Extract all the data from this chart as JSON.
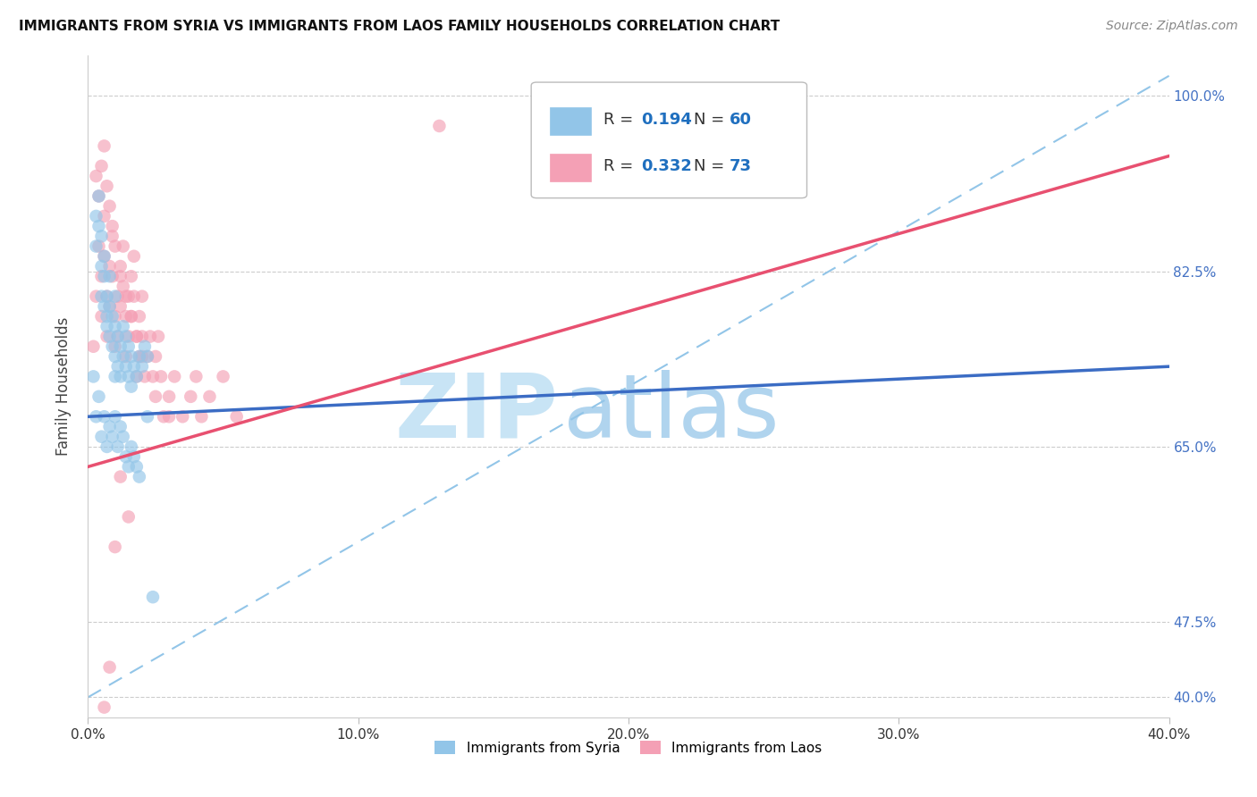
{
  "title": "IMMIGRANTS FROM SYRIA VS IMMIGRANTS FROM LAOS FAMILY HOUSEHOLDS CORRELATION CHART",
  "source": "Source: ZipAtlas.com",
  "ylabel": "Family Households",
  "ytick_values": [
    1.0,
    0.825,
    0.65,
    0.475,
    0.4
  ],
  "ytick_labels": [
    "100.0%",
    "82.5%",
    "65.0%",
    "47.5%",
    "40.0%"
  ],
  "xtick_values": [
    0.0,
    0.1,
    0.2,
    0.3,
    0.4
  ],
  "xtick_labels": [
    "0.0%",
    "10.0%",
    "20.0%",
    "30.0%",
    "40.0%"
  ],
  "xlim": [
    0.0,
    0.4
  ],
  "ylim": [
    0.38,
    1.04
  ],
  "legend_r_syria": "R = 0.194",
  "legend_n_syria": "N = 60",
  "legend_r_laos": "R = 0.332",
  "legend_n_laos": "N = 73",
  "legend_label_syria": "Immigrants from Syria",
  "legend_label_laos": "Immigrants from Laos",
  "color_syria": "#92C5E8",
  "color_laos": "#F4A0B5",
  "color_syria_line": "#3B6CC4",
  "color_laos_line": "#E85070",
  "color_dashed": "#92C5E8",
  "watermark_zip_color": "#C8E4F5",
  "watermark_atlas_color": "#B0D4EE",
  "syria_x": [
    0.002,
    0.003,
    0.003,
    0.004,
    0.004,
    0.005,
    0.005,
    0.005,
    0.006,
    0.006,
    0.006,
    0.007,
    0.007,
    0.007,
    0.008,
    0.008,
    0.008,
    0.009,
    0.009,
    0.01,
    0.01,
    0.01,
    0.011,
    0.011,
    0.012,
    0.012,
    0.013,
    0.013,
    0.014,
    0.014,
    0.015,
    0.015,
    0.016,
    0.016,
    0.017,
    0.018,
    0.019,
    0.02,
    0.021,
    0.022,
    0.003,
    0.004,
    0.005,
    0.006,
    0.007,
    0.008,
    0.009,
    0.01,
    0.011,
    0.012,
    0.013,
    0.014,
    0.015,
    0.016,
    0.017,
    0.018,
    0.019,
    0.022,
    0.024,
    0.01
  ],
  "syria_y": [
    0.72,
    0.88,
    0.85,
    0.9,
    0.87,
    0.86,
    0.83,
    0.8,
    0.84,
    0.82,
    0.79,
    0.77,
    0.78,
    0.8,
    0.76,
    0.79,
    0.82,
    0.75,
    0.78,
    0.74,
    0.77,
    0.8,
    0.73,
    0.76,
    0.72,
    0.75,
    0.74,
    0.77,
    0.73,
    0.76,
    0.72,
    0.75,
    0.74,
    0.71,
    0.73,
    0.72,
    0.74,
    0.73,
    0.75,
    0.74,
    0.68,
    0.7,
    0.66,
    0.68,
    0.65,
    0.67,
    0.66,
    0.68,
    0.65,
    0.67,
    0.66,
    0.64,
    0.63,
    0.65,
    0.64,
    0.63,
    0.62,
    0.68,
    0.5,
    0.72
  ],
  "laos_x": [
    0.002,
    0.003,
    0.004,
    0.005,
    0.005,
    0.006,
    0.006,
    0.007,
    0.007,
    0.008,
    0.008,
    0.009,
    0.009,
    0.01,
    0.01,
    0.011,
    0.011,
    0.012,
    0.012,
    0.013,
    0.013,
    0.014,
    0.014,
    0.015,
    0.015,
    0.016,
    0.016,
    0.017,
    0.017,
    0.018,
    0.018,
    0.019,
    0.019,
    0.02,
    0.02,
    0.021,
    0.022,
    0.023,
    0.024,
    0.025,
    0.026,
    0.027,
    0.028,
    0.03,
    0.032,
    0.035,
    0.038,
    0.04,
    0.042,
    0.045,
    0.05,
    0.055,
    0.003,
    0.004,
    0.005,
    0.006,
    0.007,
    0.008,
    0.009,
    0.01,
    0.012,
    0.014,
    0.016,
    0.018,
    0.02,
    0.025,
    0.03,
    0.012,
    0.015,
    0.01,
    0.008,
    0.006,
    0.13
  ],
  "laos_y": [
    0.75,
    0.8,
    0.85,
    0.78,
    0.82,
    0.88,
    0.84,
    0.76,
    0.8,
    0.83,
    0.79,
    0.86,
    0.82,
    0.78,
    0.75,
    0.8,
    0.76,
    0.83,
    0.79,
    0.85,
    0.81,
    0.78,
    0.74,
    0.8,
    0.76,
    0.82,
    0.78,
    0.84,
    0.8,
    0.76,
    0.72,
    0.78,
    0.74,
    0.8,
    0.76,
    0.72,
    0.74,
    0.76,
    0.72,
    0.74,
    0.76,
    0.72,
    0.68,
    0.7,
    0.72,
    0.68,
    0.7,
    0.72,
    0.68,
    0.7,
    0.72,
    0.68,
    0.92,
    0.9,
    0.93,
    0.95,
    0.91,
    0.89,
    0.87,
    0.85,
    0.82,
    0.8,
    0.78,
    0.76,
    0.74,
    0.7,
    0.68,
    0.62,
    0.58,
    0.55,
    0.43,
    0.39,
    0.97
  ],
  "syria_line_x": [
    0.0,
    0.4
  ],
  "syria_line_y": [
    0.68,
    0.73
  ],
  "laos_line_x": [
    0.0,
    0.4
  ],
  "laos_line_y": [
    0.63,
    0.94
  ],
  "diag_line_x": [
    0.0,
    0.4
  ],
  "diag_line_y": [
    0.4,
    1.02
  ]
}
